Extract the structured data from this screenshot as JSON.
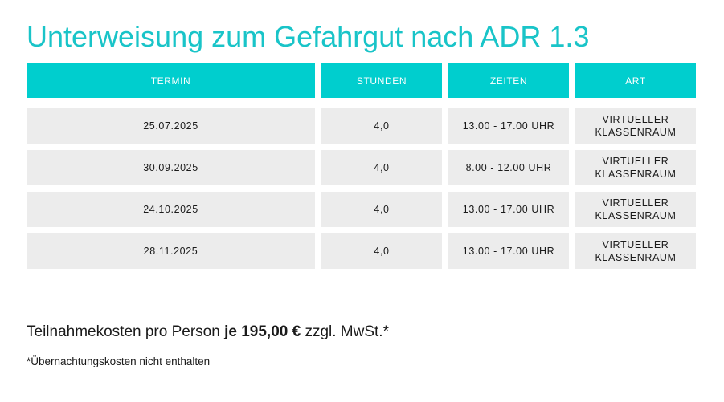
{
  "title": "Unterweisung zum Gefahrgut nach ADR 1.3",
  "table": {
    "headers": [
      "TERMIN",
      "STUNDEN",
      "ZEITEN",
      "ART"
    ],
    "rows": [
      {
        "termin": "25.07.2025",
        "stunden": "4,0",
        "zeiten": "13.00 - 17.00 UHR",
        "art_line1": "VIRTUELLER",
        "art_line2": "KLASSENRAUM"
      },
      {
        "termin": "30.09.2025",
        "stunden": "4,0",
        "zeiten": "8.00 - 12.00 UHR",
        "art_line1": "VIRTUELLER",
        "art_line2": "KLASSENRAUM"
      },
      {
        "termin": "24.10.2025",
        "stunden": "4,0",
        "zeiten": "13.00 - 17.00 UHR",
        "art_line1": "VIRTUELLER",
        "art_line2": "KLASSENRAUM"
      },
      {
        "termin": "28.11.2025",
        "stunden": "4,0",
        "zeiten": "13.00 - 17.00 UHR",
        "art_line1": "VIRTUELLER",
        "art_line2": "KLASSENRAUM"
      }
    ]
  },
  "price": {
    "prefix": "Teilnahmekosten pro Person ",
    "amount": "je 195,00 €",
    "suffix": " zzgl. MwSt.*"
  },
  "footnote": "*Übernachtungskosten nicht enthalten",
  "colors": {
    "accent": "#19c4c8",
    "header_bg": "#00cece",
    "cell_bg": "#ececec"
  }
}
